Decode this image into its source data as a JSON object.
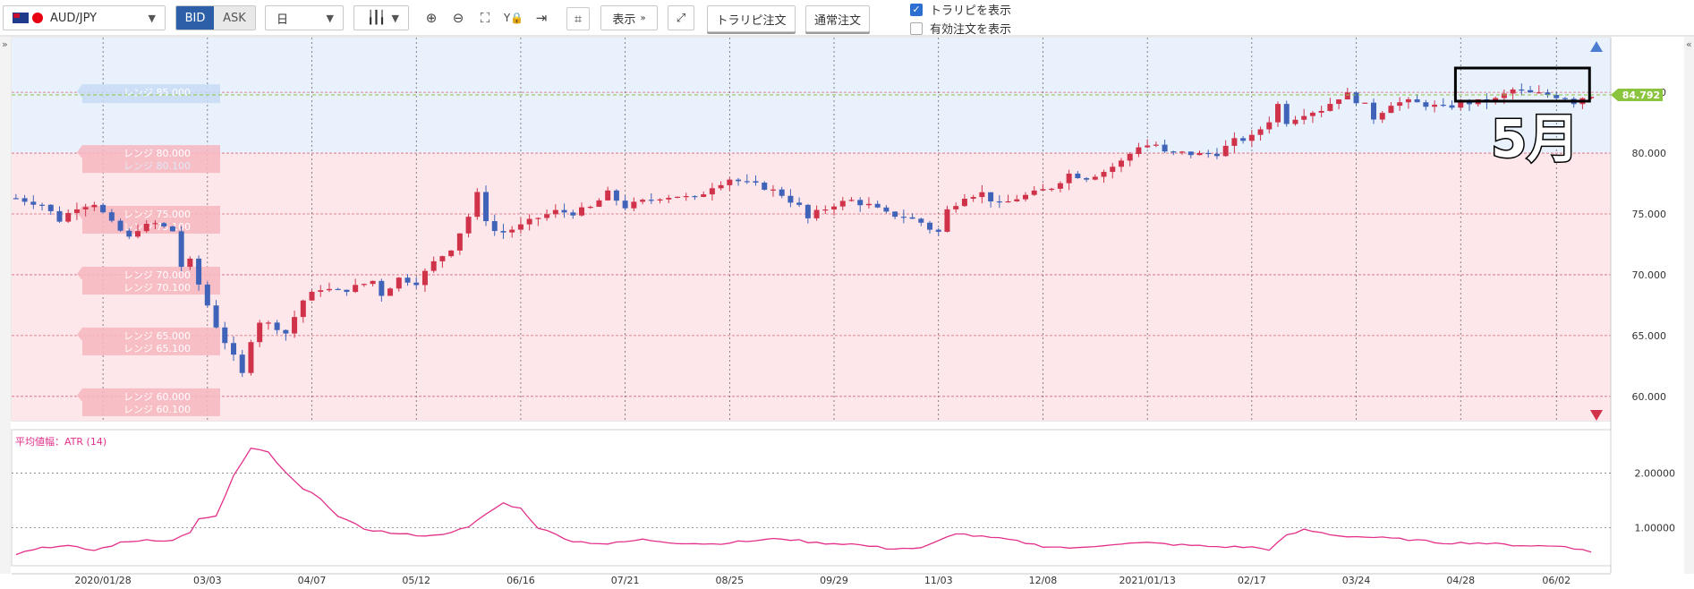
{
  "toolbar": {
    "pair": "AUD/JPY",
    "bid_label": "BID",
    "ask_label": "ASK",
    "period": "日",
    "display_label": "表示",
    "trail_order_label": "トラリピ注文",
    "normal_order_label": "通常注文",
    "show_traripi_label": "トラリピを表示",
    "show_traripi_checked": true,
    "show_active_orders_label": "有効注文を表示",
    "show_active_orders_checked": false
  },
  "annotation": {
    "label": "5月"
  },
  "chart_data": [
    {
      "type": "candlestick",
      "title": "",
      "current_price": "84.792",
      "ylim": [
        58.0,
        89.5
      ],
      "yticks": [
        "85.000",
        "80.000",
        "75.000",
        "70.000",
        "65.000",
        "60.000"
      ],
      "x_ticks": [
        "2020/01/28",
        "03/03",
        "04/07",
        "05/12",
        "06/16",
        "07/21",
        "08/25",
        "09/29",
        "11/03",
        "12/08",
        "2021/01/13",
        "02/17",
        "03/24",
        "04/28",
        "06/02"
      ],
      "range_bands": [
        {
          "label": "レンジ 85.000",
          "sub": "",
          "side": "sell"
        },
        {
          "label": "レンジ 80.000",
          "sub": "レンジ 80.100",
          "side": "mix"
        },
        {
          "label": "レンジ 75.000",
          "sub": "レンジ 75.100",
          "side": "buy"
        },
        {
          "label": "レンジ 70.000",
          "sub": "レンジ 70.100",
          "side": "buy"
        },
        {
          "label": "レンジ 65.000",
          "sub": "レンジ 65.100",
          "side": "buy"
        },
        {
          "label": "レンジ 60.000",
          "sub": "レンジ 60.100",
          "side": "buy"
        }
      ],
      "colors": {
        "up": "#d0324a",
        "down": "#3e63b8",
        "sell_zone": "#e8f1fc",
        "buy_zone": "#fde7ea",
        "price_tag": "#8bc53f"
      },
      "close_anchors": [
        [
          0,
          76.3
        ],
        [
          3,
          75.8
        ],
        [
          5,
          74.5
        ],
        [
          7,
          75.6
        ],
        [
          9,
          75.9
        ],
        [
          11,
          74.2
        ],
        [
          13,
          73.0
        ],
        [
          14,
          73.8
        ],
        [
          16,
          74.2
        ],
        [
          18,
          73.6
        ],
        [
          19,
          70.7
        ],
        [
          20,
          71.1
        ],
        [
          21,
          69.2
        ],
        [
          23,
          65.8
        ],
        [
          25,
          63.2
        ],
        [
          26,
          61.8
        ],
        [
          27,
          64.7
        ],
        [
          28,
          66.2
        ],
        [
          30,
          65.7
        ],
        [
          31,
          65.2
        ],
        [
          33,
          67.9
        ],
        [
          35,
          68.9
        ],
        [
          37,
          68.6
        ],
        [
          39,
          69.0
        ],
        [
          41,
          69.5
        ],
        [
          42,
          68.4
        ],
        [
          44,
          69.7
        ],
        [
          46,
          69.4
        ],
        [
          48,
          71.0
        ],
        [
          50,
          72.2
        ],
        [
          52,
          74.8
        ],
        [
          53,
          76.6
        ],
        [
          54,
          74.6
        ],
        [
          55,
          73.6
        ],
        [
          56,
          73.5
        ],
        [
          58,
          74.0
        ],
        [
          60,
          74.7
        ],
        [
          62,
          75.2
        ],
        [
          64,
          75.1
        ],
        [
          66,
          75.5
        ],
        [
          68,
          76.7
        ],
        [
          70,
          75.6
        ],
        [
          72,
          76.0
        ],
        [
          74,
          76.4
        ],
        [
          76,
          76.5
        ],
        [
          78,
          76.2
        ],
        [
          80,
          77.3
        ],
        [
          82,
          77.9
        ],
        [
          84,
          77.5
        ],
        [
          86,
          77.2
        ],
        [
          88,
          76.6
        ],
        [
          90,
          75.6
        ],
        [
          91,
          74.6
        ],
        [
          92,
          75.1
        ],
        [
          94,
          75.8
        ],
        [
          96,
          76.1
        ],
        [
          98,
          75.7
        ],
        [
          100,
          75.0
        ],
        [
          102,
          74.8
        ],
        [
          104,
          74.3
        ],
        [
          105,
          73.8
        ],
        [
          106,
          73.5
        ],
        [
          107,
          75.3
        ],
        [
          109,
          76.5
        ],
        [
          111,
          76.7
        ],
        [
          113,
          75.7
        ],
        [
          115,
          76.3
        ],
        [
          117,
          76.7
        ],
        [
          119,
          77.2
        ],
        [
          121,
          78.3
        ],
        [
          123,
          78.0
        ],
        [
          125,
          78.5
        ],
        [
          127,
          79.3
        ],
        [
          129,
          80.6
        ],
        [
          131,
          80.7
        ],
        [
          132,
          80.0
        ],
        [
          134,
          80.0
        ],
        [
          136,
          79.9
        ],
        [
          138,
          80.0
        ],
        [
          140,
          81.0
        ],
        [
          142,
          81.3
        ],
        [
          144,
          82.7
        ],
        [
          145,
          84.0
        ],
        [
          146,
          82.6
        ],
        [
          148,
          83.3
        ],
        [
          150,
          83.6
        ],
        [
          152,
          84.6
        ],
        [
          153,
          84.8
        ],
        [
          155,
          83.9
        ],
        [
          156,
          82.9
        ],
        [
          158,
          84.1
        ],
        [
          160,
          84.2
        ],
        [
          162,
          84.0
        ],
        [
          164,
          83.7
        ],
        [
          166,
          84.1
        ],
        [
          168,
          84.2
        ],
        [
          170,
          84.4
        ],
        [
          172,
          85.2
        ],
        [
          174,
          84.9
        ],
        [
          176,
          84.8
        ],
        [
          178,
          84.6
        ],
        [
          179,
          84.2
        ],
        [
          180,
          84.6
        ],
        [
          181,
          84.79
        ]
      ]
    },
    {
      "type": "line",
      "title": "平均値幅：ATR (14)",
      "ylim": [
        0.3,
        2.8
      ],
      "yticks": [
        "2.00000",
        "1.00000"
      ],
      "color": "#e3308a",
      "anchors": [
        [
          0,
          0.52
        ],
        [
          3,
          0.64
        ],
        [
          6,
          0.66
        ],
        [
          9,
          0.58
        ],
        [
          12,
          0.72
        ],
        [
          15,
          0.78
        ],
        [
          18,
          0.76
        ],
        [
          20,
          0.92
        ],
        [
          21,
          1.15
        ],
        [
          23,
          1.2
        ],
        [
          25,
          1.95
        ],
        [
          26,
          2.2
        ],
        [
          27,
          2.45
        ],
        [
          29,
          2.38
        ],
        [
          31,
          2.0
        ],
        [
          33,
          1.7
        ],
        [
          35,
          1.55
        ],
        [
          37,
          1.2
        ],
        [
          40,
          0.98
        ],
        [
          44,
          0.88
        ],
        [
          48,
          0.85
        ],
        [
          52,
          1.0
        ],
        [
          54,
          1.25
        ],
        [
          56,
          1.45
        ],
        [
          58,
          1.35
        ],
        [
          60,
          1.0
        ],
        [
          64,
          0.75
        ],
        [
          68,
          0.7
        ],
        [
          72,
          0.78
        ],
        [
          76,
          0.72
        ],
        [
          80,
          0.7
        ],
        [
          84,
          0.75
        ],
        [
          88,
          0.8
        ],
        [
          92,
          0.72
        ],
        [
          96,
          0.7
        ],
        [
          100,
          0.62
        ],
        [
          104,
          0.62
        ],
        [
          106,
          0.75
        ],
        [
          108,
          0.9
        ],
        [
          110,
          0.85
        ],
        [
          114,
          0.78
        ],
        [
          118,
          0.66
        ],
        [
          122,
          0.62
        ],
        [
          126,
          0.7
        ],
        [
          130,
          0.72
        ],
        [
          134,
          0.68
        ],
        [
          138,
          0.65
        ],
        [
          142,
          0.64
        ],
        [
          144,
          0.6
        ],
        [
          146,
          0.85
        ],
        [
          148,
          0.96
        ],
        [
          152,
          0.85
        ],
        [
          156,
          0.82
        ],
        [
          160,
          0.78
        ],
        [
          164,
          0.72
        ],
        [
          168,
          0.72
        ],
        [
          172,
          0.68
        ],
        [
          176,
          0.66
        ],
        [
          178,
          0.66
        ],
        [
          181,
          0.55
        ]
      ]
    }
  ]
}
